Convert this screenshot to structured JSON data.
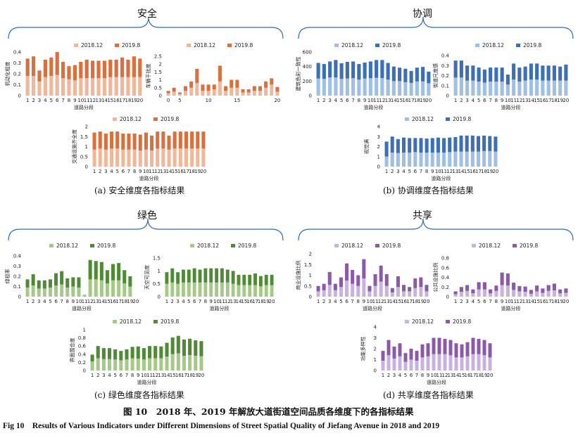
{
  "figure": {
    "caption_cn": "图 10　2018 年、2019 年解放大道街道空间品质各维度下的各指标结果",
    "caption_en": "Fig 10　Results of Various Indicators under Different Dimensions of Street Spatial Quality of Jiefang Avenue in 2018 and 2019"
  },
  "groups": [
    {
      "title": "安全",
      "caption": "(a) 安全维度各指标结果"
    },
    {
      "title": "协调",
      "caption": "(b) 协调维度各指标结果"
    },
    {
      "title": "绿色",
      "caption": "(c) 绿色维度各指标结果"
    },
    {
      "title": "共享",
      "caption": "(d) 共享维度各指标结果"
    }
  ],
  "legend_labels": [
    "2018.12",
    "2019.8"
  ],
  "chart_data": [
    {
      "type": "bar",
      "stacked": true,
      "group": "安全",
      "ylabel": "机动化程度",
      "xlabel": "道路分段",
      "categories": [
        "1",
        "2",
        "3",
        "4",
        "5",
        "6",
        "7",
        "8",
        "9",
        "10",
        "11",
        "12",
        "13",
        "14",
        "15",
        "16",
        "17",
        "18",
        "19",
        "20"
      ],
      "yticks": [
        0,
        0.1,
        0.2,
        0.3,
        0.4
      ],
      "ylim": [
        0,
        0.4
      ],
      "colors": [
        "#f0b89a",
        "#d9703f"
      ],
      "series": [
        {
          "name": "2018.12",
          "values": [
            0.18,
            0.18,
            0.13,
            0.17,
            0.18,
            0.19,
            0.16,
            0.15,
            0.14,
            0.16,
            0.16,
            0.16,
            0.16,
            0.16,
            0.17,
            0.17,
            0.17,
            0.17,
            0.17,
            0.17
          ]
        },
        {
          "name": "2019.8",
          "values": [
            0.16,
            0.18,
            0.1,
            0.16,
            0.17,
            0.21,
            0.15,
            0.12,
            0.14,
            0.15,
            0.17,
            0.16,
            0.16,
            0.16,
            0.16,
            0.16,
            0.18,
            0.16,
            0.19,
            0.17
          ]
        }
      ]
    },
    {
      "type": "bar",
      "stacked": true,
      "group": "安全",
      "ylabel": "车辆干扰度",
      "xlabel": "",
      "categories": [
        "1",
        "2",
        "3",
        "4",
        "5",
        "6",
        "7",
        "8",
        "9",
        "10",
        "11",
        "12",
        "13",
        "14",
        "15",
        "16",
        "17",
        "18",
        "19",
        "20"
      ],
      "xticks": [
        "0",
        "",
        "5",
        "",
        "",
        "",
        "",
        "10",
        "",
        "",
        "",
        "",
        "15",
        "",
        "",
        "",
        "",
        "",
        "",
        "20"
      ],
      "yticks": [
        0,
        0.5,
        1,
        1.5,
        2,
        2.5
      ],
      "ylim": [
        0,
        2.5
      ],
      "colors": [
        "#f0b89a",
        "#d9703f"
      ],
      "series": [
        {
          "name": "2018.12",
          "values": [
            0.15,
            0.25,
            0.1,
            0.3,
            0.5,
            0.8,
            0.3,
            0.3,
            0.4,
            0.9,
            0.3,
            0.5,
            0.5,
            0.2,
            0.2,
            0.3,
            0.3,
            0.5,
            0.7,
            0.25
          ]
        },
        {
          "name": "2019.8",
          "values": [
            0.15,
            0.25,
            0.1,
            0.3,
            0.4,
            0.9,
            0.4,
            0.4,
            0.3,
            1.0,
            0.3,
            0.5,
            0.5,
            0.2,
            0.2,
            0.3,
            0.3,
            0.4,
            0.4,
            0.3
          ]
        }
      ]
    },
    {
      "type": "bar",
      "stacked": true,
      "group": "安全",
      "ylabel": "交通设施齐全度",
      "xlabel": "道路分段",
      "categories": [
        "1",
        "2",
        "3",
        "4",
        "5",
        "6",
        "7",
        "8",
        "9",
        "10",
        "11",
        "12",
        "13",
        "14",
        "15",
        "16",
        "17",
        "18",
        "19",
        "20"
      ],
      "yticks": [
        0,
        0.5,
        1,
        1.5,
        2
      ],
      "ylim": [
        0,
        2
      ],
      "colors": [
        "#f0b89a",
        "#d9703f"
      ],
      "series": [
        {
          "name": "2018.12",
          "values": [
            0.85,
            0.9,
            0.85,
            0.9,
            0.9,
            0.85,
            0.85,
            0.85,
            0.8,
            0.85,
            0.8,
            0.9,
            0.9,
            0.85,
            0.9,
            0.9,
            0.9,
            0.9,
            0.9,
            0.9
          ]
        },
        {
          "name": "2019.8",
          "values": [
            0.85,
            0.85,
            0.8,
            0.85,
            0.85,
            0.8,
            0.8,
            0.8,
            0.8,
            0.85,
            0.75,
            0.85,
            0.85,
            0.7,
            0.85,
            0.85,
            0.85,
            0.85,
            0.85,
            0.85
          ]
        }
      ]
    },
    {
      "type": "bar",
      "stacked": true,
      "group": "协调",
      "ylabel": "建筑色彩一致性",
      "xlabel": "道路分段",
      "categories": [
        "1",
        "2",
        "3",
        "4",
        "5",
        "6",
        "7",
        "8",
        "9",
        "10",
        "11",
        "12",
        "13",
        "14",
        "15",
        "16",
        "17",
        "18",
        "19",
        "20"
      ],
      "yticks": [
        0,
        200,
        400,
        600
      ],
      "ylim": [
        0,
        600
      ],
      "colors": [
        "#9fbfe3",
        "#3d6fb4"
      ],
      "series": [
        {
          "name": "2018.12",
          "values": [
            235,
            230,
            250,
            250,
            230,
            235,
            240,
            220,
            235,
            240,
            245,
            240,
            220,
            200,
            200,
            185,
            175,
            195,
            195,
            170
          ]
        },
        {
          "name": "2019.8",
          "values": [
            215,
            205,
            220,
            240,
            215,
            230,
            230,
            215,
            220,
            230,
            245,
            250,
            230,
            200,
            185,
            185,
            165,
            190,
            200,
            160
          ]
        }
      ]
    },
    {
      "type": "bar",
      "stacked": true,
      "group": "协调",
      "ylabel": "街道尺度感",
      "xlabel": "道路分段",
      "categories": [
        "1",
        "2",
        "3",
        "4",
        "5",
        "6",
        "7",
        "8",
        "9",
        "10",
        "11",
        "12",
        "13",
        "14",
        "15",
        "16",
        "17",
        "18",
        "19",
        "20"
      ],
      "yticks": [
        0,
        0.1,
        0.2,
        0.3,
        0.4
      ],
      "ylim": [
        0,
        0.4
      ],
      "colors": [
        "#9fbfe3",
        "#3d6fb4"
      ],
      "series": [
        {
          "name": "2018.12",
          "values": [
            0.18,
            0.18,
            0.15,
            0.15,
            0.14,
            0.13,
            0.14,
            0.14,
            0.14,
            0.11,
            0.16,
            0.14,
            0.15,
            0.16,
            0.16,
            0.15,
            0.15,
            0.15,
            0.15,
            0.15
          ]
        },
        {
          "name": "2019.8",
          "values": [
            0.17,
            0.17,
            0.15,
            0.15,
            0.14,
            0.13,
            0.14,
            0.14,
            0.14,
            0.1,
            0.16,
            0.14,
            0.14,
            0.16,
            0.16,
            0.15,
            0.15,
            0.15,
            0.14,
            0.16
          ]
        }
      ]
    },
    {
      "type": "bar",
      "stacked": true,
      "group": "协调",
      "ylabel": "视觉满",
      "xlabel": "道路分段",
      "categories": [
        "1",
        "2",
        "3",
        "4",
        "5",
        "6",
        "7",
        "8",
        "9",
        "10",
        "11",
        "12",
        "13",
        "14",
        "15",
        "16",
        "17",
        "18",
        "19",
        "20"
      ],
      "yticks": [
        0,
        1,
        2,
        3,
        4
      ],
      "ylim": [
        0,
        4
      ],
      "colors": [
        "#9fbfe3",
        "#3d6fb4"
      ],
      "series": [
        {
          "name": "2018.12",
          "values": [
            1.0,
            1.4,
            1.35,
            1.4,
            1.4,
            1.45,
            1.4,
            1.4,
            1.4,
            1.4,
            1.4,
            1.45,
            1.5,
            1.5,
            1.5,
            1.5,
            1.5,
            1.55,
            1.55,
            1.5
          ]
        },
        {
          "name": "2019.8",
          "values": [
            1.5,
            1.6,
            1.4,
            1.5,
            1.45,
            1.4,
            1.45,
            1.4,
            1.45,
            1.5,
            1.45,
            1.45,
            1.45,
            1.6,
            1.6,
            1.6,
            1.55,
            1.55,
            1.5,
            1.5
          ]
        }
      ]
    },
    {
      "type": "bar",
      "stacked": true,
      "group": "绿色",
      "ylabel": "绿视率",
      "xlabel": "道路分段",
      "categories": [
        "1",
        "2",
        "3",
        "4",
        "5",
        "6",
        "7",
        "8",
        "9",
        "10",
        "11",
        "12",
        "13",
        "14",
        "15",
        "16",
        "17",
        "18",
        "19",
        "20"
      ],
      "yticks": [
        0,
        0.1,
        0.2,
        0.3,
        0.4
      ],
      "ylim": [
        0,
        0.4
      ],
      "colors": [
        "#a6c98a",
        "#4f8a35"
      ],
      "series": [
        {
          "name": "2018.12",
          "values": [
            0.09,
            0.11,
            0.08,
            0.08,
            0.09,
            0.11,
            0.12,
            0.09,
            0.1,
            0.09,
            0.02,
            0.17,
            0.17,
            0.16,
            0.13,
            0.16,
            0.16,
            0.13,
            0.1,
            0.0
          ]
        },
        {
          "name": "2019.8",
          "values": [
            0.08,
            0.11,
            0.08,
            0.08,
            0.08,
            0.12,
            0.13,
            0.09,
            0.09,
            0.1,
            0.0,
            0.19,
            0.18,
            0.18,
            0.13,
            0.16,
            0.17,
            0.13,
            0.1,
            0.0
          ]
        }
      ]
    },
    {
      "type": "bar",
      "stacked": true,
      "group": "绿色",
      "ylabel": "天空可见度",
      "xlabel": "道路分段",
      "categories": [
        "1",
        "2",
        "3",
        "4",
        "5",
        "6",
        "7",
        "8",
        "9",
        "10",
        "11",
        "12",
        "13",
        "14",
        "15",
        "16",
        "17",
        "18",
        "19",
        "20"
      ],
      "yticks": [
        0,
        0.5,
        1,
        1.5
      ],
      "ylim": [
        0,
        1.5
      ],
      "colors": [
        "#a6c98a",
        "#4f8a35"
      ],
      "series": [
        {
          "name": "2018.12",
          "values": [
            0.5,
            0.55,
            0.5,
            0.55,
            0.55,
            0.55,
            0.55,
            0.55,
            0.55,
            0.55,
            0.55,
            0.55,
            0.5,
            0.45,
            0.45,
            0.45,
            0.45,
            0.4,
            0.45,
            0.45
          ]
        },
        {
          "name": "2019.8",
          "values": [
            0.45,
            0.55,
            0.45,
            0.5,
            0.5,
            0.55,
            0.5,
            0.55,
            0.55,
            0.55,
            0.55,
            0.5,
            0.5,
            0.4,
            0.4,
            0.4,
            0.45,
            0.4,
            0.4,
            0.4
          ]
        }
      ]
    },
    {
      "type": "bar",
      "stacked": true,
      "group": "绿色",
      "ylabel": "界面围合度",
      "xlabel": "道路分段",
      "categories": [
        "1",
        "2",
        "3",
        "4",
        "5",
        "6",
        "7",
        "8",
        "9",
        "10",
        "11",
        "12",
        "13",
        "14",
        "15",
        "16",
        "17",
        "18",
        "19",
        "20"
      ],
      "yticks": [
        0,
        0.2,
        0.4,
        0.6,
        0.8,
        1
      ],
      "ylim": [
        0,
        1
      ],
      "colors": [
        "#a6c98a",
        "#4f8a35"
      ],
      "series": [
        {
          "name": "2018.12",
          "values": [
            0.22,
            0.3,
            0.28,
            0.28,
            0.27,
            0.25,
            0.27,
            0.3,
            0.29,
            0.27,
            0.3,
            0.3,
            0.3,
            0.34,
            0.4,
            0.42,
            0.36,
            0.38,
            0.36,
            0.35
          ]
        },
        {
          "name": "2019.8",
          "values": [
            0.17,
            0.3,
            0.27,
            0.27,
            0.25,
            0.23,
            0.25,
            0.28,
            0.3,
            0.28,
            0.3,
            0.3,
            0.29,
            0.34,
            0.41,
            0.43,
            0.4,
            0.4,
            0.38,
            0.37
          ]
        }
      ]
    },
    {
      "type": "bar",
      "stacked": true,
      "group": "共享",
      "ylabel": "商业设施比例",
      "xlabel": "道路分段",
      "categories": [
        "1",
        "2",
        "3",
        "4",
        "5",
        "6",
        "7",
        "8",
        "9",
        "10",
        "11",
        "12",
        "13",
        "14",
        "15",
        "16",
        "17",
        "18",
        "19",
        "20"
      ],
      "yticks": [
        0,
        0.5,
        1,
        1.5,
        2
      ],
      "ylim": [
        0,
        2
      ],
      "colors": [
        "#c9b3dd",
        "#8a5aa8"
      ],
      "series": [
        {
          "name": "2018.12",
          "values": [
            0.25,
            0.3,
            0.55,
            0.3,
            0.45,
            0.75,
            0.6,
            0.5,
            0.85,
            0.25,
            0.5,
            0.7,
            0.5,
            0.2,
            0.45,
            0.25,
            0.25,
            0.4,
            0.45,
            0.25
          ]
        },
        {
          "name": "2019.8",
          "values": [
            0.25,
            0.3,
            0.6,
            0.3,
            0.45,
            0.8,
            0.65,
            0.5,
            0.9,
            0.25,
            0.55,
            0.75,
            0.55,
            0.2,
            0.5,
            0.3,
            0.2,
            0.45,
            0.45,
            0.3
          ]
        }
      ]
    },
    {
      "type": "bar",
      "stacked": true,
      "group": "共享",
      "ylabel": "公共设施比例",
      "xlabel": "道路分段",
      "categories": [
        "1",
        "2",
        "3",
        "4",
        "5",
        "6",
        "7",
        "8",
        "9",
        "10",
        "11",
        "12",
        "13",
        "14",
        "15",
        "16",
        "17",
        "18",
        "19",
        "20"
      ],
      "yticks": [
        0,
        0.2,
        0.4,
        0.6,
        0.8
      ],
      "ylim": [
        0,
        0.8
      ],
      "colors": [
        "#c9b3dd",
        "#8a5aa8"
      ],
      "series": [
        {
          "name": "2018.12",
          "values": [
            0.05,
            0.1,
            0.12,
            0.07,
            0.15,
            0.15,
            0.07,
            0.12,
            0.24,
            0.23,
            0.14,
            0.11,
            0.1,
            0.06,
            0.11,
            0.08,
            0.12,
            0.13,
            0.07,
            0.08
          ]
        },
        {
          "name": "2019.8",
          "values": [
            0.06,
            0.1,
            0.12,
            0.08,
            0.15,
            0.15,
            0.08,
            0.11,
            0.26,
            0.25,
            0.15,
            0.11,
            0.11,
            0.08,
            0.12,
            0.09,
            0.12,
            0.14,
            0.08,
            0.09
          ]
        }
      ]
    },
    {
      "type": "bar",
      "stacked": true,
      "group": "共享",
      "ylabel": "功能多样性",
      "xlabel": "道路分段",
      "categories": [
        "1",
        "2",
        "3",
        "4",
        "5",
        "6",
        "7",
        "8",
        "9",
        "10",
        "11",
        "12",
        "13",
        "14",
        "15",
        "16",
        "17",
        "18",
        "19",
        "20"
      ],
      "yticks": [
        0,
        1,
        2,
        3,
        4
      ],
      "ylim": [
        0,
        4
      ],
      "colors": [
        "#c9b3dd",
        "#8a5aa8"
      ],
      "series": [
        {
          "name": "2018.12",
          "values": [
            0.9,
            1.4,
            1.1,
            1.3,
            0.8,
            1.0,
            0.9,
            1.2,
            1.3,
            1.5,
            1.5,
            1.5,
            1.4,
            1.2,
            1.2,
            1.3,
            1.5,
            1.5,
            1.4,
            1.2
          ]
        },
        {
          "name": "2019.8",
          "values": [
            0.9,
            1.4,
            1.1,
            1.2,
            0.8,
            1.0,
            0.9,
            1.2,
            1.2,
            1.5,
            1.5,
            1.4,
            1.4,
            1.3,
            1.2,
            1.3,
            1.5,
            1.4,
            1.4,
            1.3
          ]
        }
      ]
    }
  ]
}
